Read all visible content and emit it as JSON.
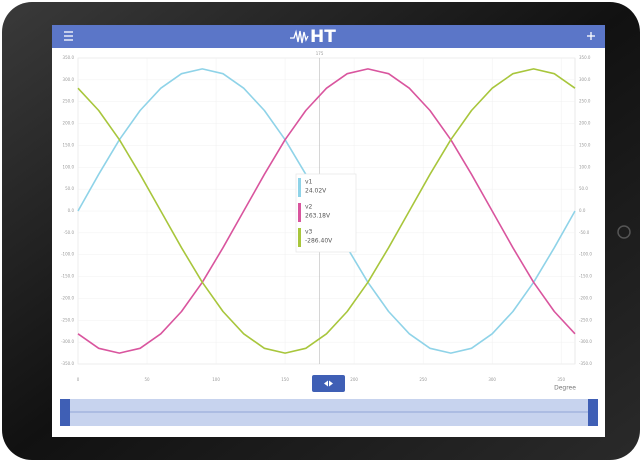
{
  "header": {
    "logo": "HT"
  },
  "chart_data": {
    "type": "line",
    "x_label": "Degree",
    "cursor": 175,
    "x": [
      0,
      15,
      30,
      45,
      60,
      75,
      90,
      105,
      120,
      135,
      150,
      165,
      180,
      195,
      210,
      225,
      240,
      255,
      270,
      285,
      300,
      315,
      330,
      345,
      360
    ],
    "series": [
      {
        "name": "v1",
        "color": "#8fd3e8",
        "values": [
          0,
          84,
          163,
          230,
          281,
          314,
          325,
          314,
          281,
          230,
          163,
          84,
          0,
          -84,
          -163,
          -230,
          -281,
          -314,
          -325,
          -314,
          -281,
          -230,
          -163,
          -84,
          0
        ]
      },
      {
        "name": "v2",
        "color": "#d9559e",
        "values": [
          -281,
          -314,
          -325,
          -314,
          -281,
          -230,
          -163,
          -84,
          0,
          84,
          163,
          230,
          281,
          314,
          325,
          314,
          281,
          230,
          163,
          84,
          0,
          -84,
          -163,
          -230,
          -281
        ]
      },
      {
        "name": "v3",
        "color": "#a8c63c",
        "values": [
          281,
          230,
          163,
          84,
          0,
          -84,
          -163,
          -230,
          -281,
          -314,
          -325,
          -314,
          -281,
          -230,
          -163,
          -84,
          0,
          84,
          163,
          230,
          281,
          314,
          325,
          314,
          281
        ]
      }
    ],
    "readout": [
      "24.02V",
      "263.18V",
      "-286.40V"
    ],
    "xlim": [
      0,
      360
    ],
    "xticks": [
      0,
      50,
      100,
      150,
      200,
      250,
      300,
      350
    ],
    "ylim": [
      -350,
      350
    ],
    "yticks": [
      {
        "value": -350,
        "label": "-350.0"
      },
      {
        "value": -300,
        "label": "-300.0"
      },
      {
        "value": -250,
        "label": "-250.0"
      },
      {
        "value": -200,
        "label": "-200.0"
      },
      {
        "value": -150,
        "label": "-150.0"
      },
      {
        "value": -100,
        "label": "-100.0"
      },
      {
        "value": -50,
        "label": "-50.0"
      },
      {
        "value": 0,
        "label": "0.0"
      },
      {
        "value": 50,
        "label": "50.0"
      },
      {
        "value": 100,
        "label": "100.0"
      },
      {
        "value": 150,
        "label": "150.0"
      },
      {
        "value": 200,
        "label": "200.0"
      },
      {
        "value": 250,
        "label": "250.0"
      },
      {
        "value": 300,
        "label": "300.0"
      },
      {
        "value": 350,
        "label": "350.0"
      }
    ],
    "grid": true
  }
}
